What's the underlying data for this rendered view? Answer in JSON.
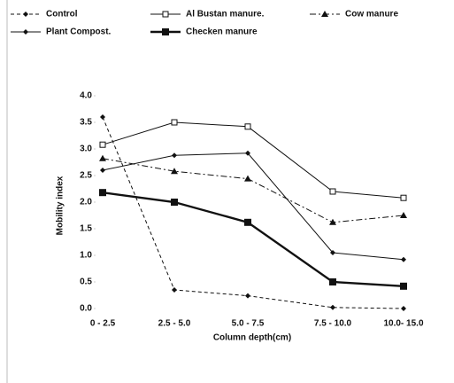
{
  "chart_data": {
    "type": "line",
    "xlabel": "Column depth(cm)",
    "ylabel": "Mobility index",
    "categories": [
      "0 - 2.5",
      "2.5 - 5.0",
      "5.0 - 7.5",
      "7.5 - 10.0",
      "10.0- 15.0"
    ],
    "ylim": [
      0,
      4
    ],
    "yticks": [
      {
        "value": 0,
        "label": "0.0"
      },
      {
        "value": 0.5,
        "label": "0.5"
      },
      {
        "value": 1,
        "label": "1.0"
      },
      {
        "value": 1.5,
        "label": "1.5"
      },
      {
        "value": 2,
        "label": "2.0"
      },
      {
        "value": 2.5,
        "label": "2.5"
      },
      {
        "value": 3,
        "label": "3.0"
      },
      {
        "value": 3.5,
        "label": "3.5"
      },
      {
        "value": 4,
        "label": "4.0"
      }
    ],
    "grid": false,
    "series": [
      {
        "name": "Control",
        "color": "#111111",
        "line": "dashed",
        "marker": "diamond",
        "values": [
          3.6,
          0.35,
          0.24,
          0.02,
          0.0
        ]
      },
      {
        "name": "Al Bustan manure.",
        "color": "#111111",
        "line": "solid",
        "marker": "square-open",
        "values": [
          3.08,
          3.5,
          3.42,
          2.2,
          2.08
        ]
      },
      {
        "name": "Cow manure",
        "color": "#111111",
        "line": "dashdot",
        "marker": "triangle",
        "values": [
          2.82,
          2.58,
          2.44,
          1.62,
          1.75
        ]
      },
      {
        "name": "Plant Compost.",
        "color": "#111111",
        "line": "solid",
        "marker": "diamond",
        "values": [
          2.6,
          2.88,
          2.92,
          1.05,
          0.92
        ]
      },
      {
        "name": "Checken manure",
        "color": "#111111",
        "line": "thick",
        "marker": "square",
        "values": [
          2.18,
          2.0,
          1.62,
          0.5,
          0.42
        ]
      }
    ]
  }
}
